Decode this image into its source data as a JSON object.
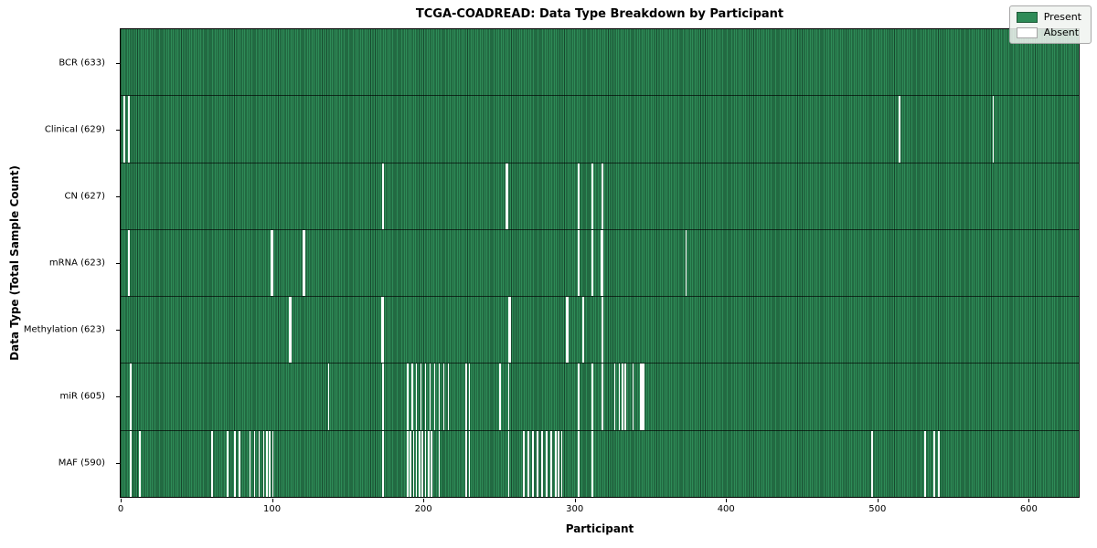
{
  "chart_data": {
    "type": "heatmap",
    "title": "TCGA-COADREAD: Data Type Breakdown by Participant",
    "xlabel": "Participant",
    "ylabel": "Data Type (Total Sample Count)",
    "x_range": [
      0,
      633
    ],
    "total_participants": 633,
    "x_ticks": [
      0,
      100,
      200,
      300,
      400,
      500,
      600
    ],
    "grid": false,
    "legend_position": "upper right",
    "legend": [
      {
        "label": "Present",
        "color": "#2e8b57"
      },
      {
        "label": "Absent",
        "color": "#ffffff"
      }
    ],
    "colors": {
      "present": "#2e8b57",
      "cell_edge": "#17482e",
      "absent": "#ffffff",
      "axes_border": "#000000"
    },
    "rows": [
      {
        "label": "BCR (633)",
        "name": "BCR",
        "present_count": 633,
        "absent_count": 0,
        "absent_participants": []
      },
      {
        "label": "Clinical (629)",
        "name": "Clinical",
        "present_count": 629,
        "absent_count": 4,
        "absent_participants": [
          2,
          5,
          514,
          576
        ]
      },
      {
        "label": "CN (627)",
        "name": "CN",
        "present_count": 627,
        "absent_count": 6,
        "absent_participants": [
          173,
          254,
          255,
          302,
          311,
          318
        ]
      },
      {
        "label": "mRNA (623)",
        "name": "mRNA",
        "present_count": 623,
        "absent_count": 10,
        "absent_participants": [
          5,
          99,
          100,
          120,
          121,
          302,
          311,
          317,
          318,
          373
        ]
      },
      {
        "label": "Methylation (623)",
        "name": "Methylation",
        "present_count": 623,
        "absent_count": 10,
        "absent_participants": [
          111,
          112,
          172,
          173,
          256,
          257,
          294,
          295,
          305,
          318
        ]
      },
      {
        "label": "miR (605)",
        "name": "miR",
        "present_count": 605,
        "absent_count": 28,
        "absent_participants": [
          6,
          137,
          173,
          189,
          192,
          195,
          198,
          201,
          204,
          207,
          210,
          213,
          216,
          228,
          230,
          250,
          256,
          302,
          311,
          318,
          326,
          329,
          331,
          333,
          338,
          343,
          344,
          345
        ]
      },
      {
        "label": "MAF (590)",
        "name": "MAF",
        "present_count": 590,
        "absent_count": 43,
        "absent_participants": [
          6,
          12,
          60,
          70,
          75,
          78,
          85,
          88,
          91,
          94,
          96,
          98,
          100,
          173,
          189,
          191,
          193,
          195,
          197,
          199,
          201,
          203,
          205,
          210,
          228,
          230,
          256,
          266,
          269,
          272,
          275,
          278,
          281,
          284,
          287,
          289,
          291,
          302,
          311,
          496,
          531,
          537,
          540
        ]
      }
    ]
  }
}
